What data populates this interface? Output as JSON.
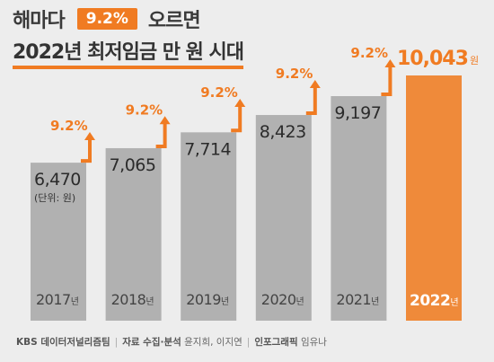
{
  "title": {
    "prefix": "해마다",
    "badge": "9.2%",
    "suffix": "오르면",
    "line2": "2022년 최저임금 만 원 시대"
  },
  "unit_note": "(단위: 원)",
  "colors": {
    "bar": "#b1b1b1",
    "bar_highlight": "#ef8a3a",
    "accent": "#f07b22",
    "background": "#ededed"
  },
  "footer": {
    "org": "KBS 데이터저널리즘팀",
    "research_label": "자료 수집·분석",
    "research_names": "윤지희, 이지연",
    "graphic_label": "인포그래픽",
    "graphic_name": "임유나"
  },
  "chart_data": {
    "type": "bar",
    "categories": [
      "2017년",
      "2018년",
      "2019년",
      "2020년",
      "2021년",
      "2022년"
    ],
    "values": [
      6470,
      7065,
      7714,
      8423,
      9197,
      10043
    ],
    "value_labels": [
      "6,470",
      "7,065",
      "7,714",
      "8,423",
      "9,197",
      "10,043"
    ],
    "highlight_value_suffix": "원",
    "growth_labels": [
      "9.2%",
      "9.2%",
      "9.2%",
      "9.2%",
      "9.2%"
    ],
    "highlight_index": 5,
    "unit": "원",
    "ylim": [
      0,
      10043
    ],
    "grid": false,
    "legend": "none"
  }
}
